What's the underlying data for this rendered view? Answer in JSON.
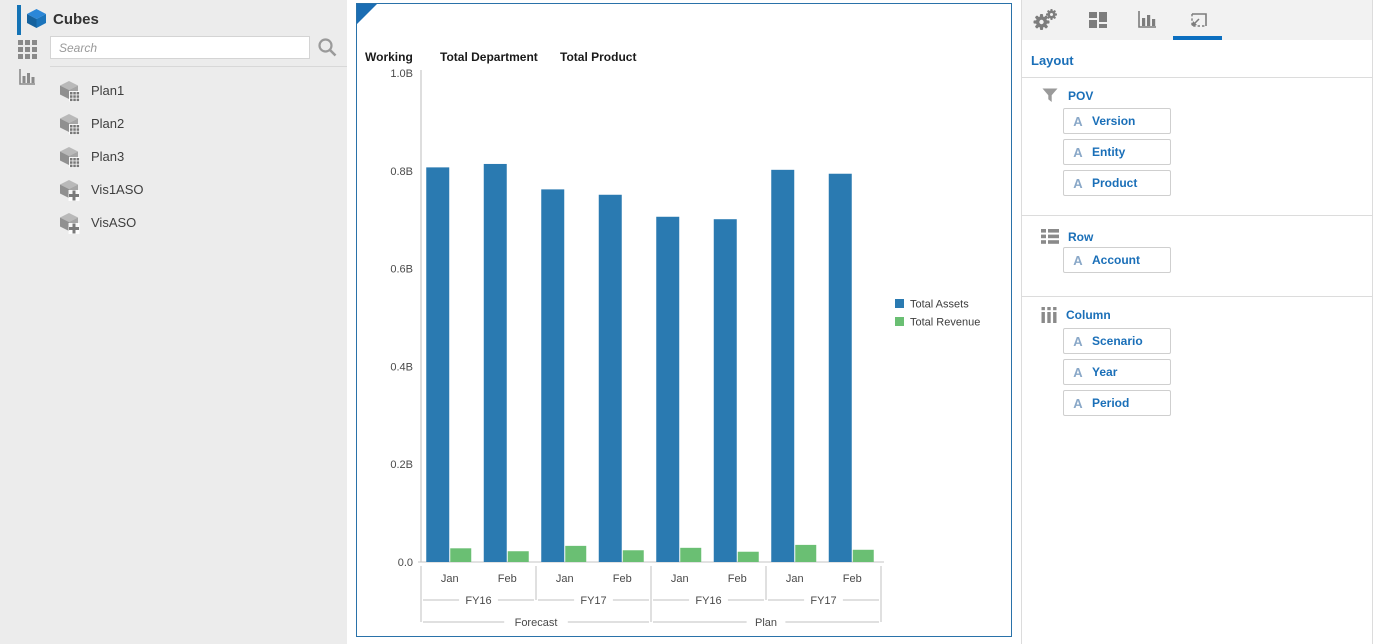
{
  "left_panel": {
    "title": "Cubes",
    "search": {
      "placeholder": "Search"
    },
    "rail_icons": [
      "cubes-icon",
      "grid-icon",
      "visualization-icon"
    ],
    "items": [
      {
        "label": "Plan1",
        "icon": "cube-grid-icon"
      },
      {
        "label": "Plan2",
        "icon": "cube-grid-icon"
      },
      {
        "label": "Plan3",
        "icon": "cube-grid-icon"
      },
      {
        "label": "Vis1ASO",
        "icon": "cube-plus-icon"
      },
      {
        "label": "VisASO",
        "icon": "cube-plus-icon"
      }
    ]
  },
  "chart_panel": {
    "pov_headers": [
      "Working",
      "Total Department",
      "Total Product"
    ]
  },
  "chart_data": {
    "type": "bar",
    "title": "",
    "xlabel": "",
    "ylabel": "",
    "ylim": [
      0,
      1.0
    ],
    "y_tick_labels": [
      "1.0B",
      "0.8B",
      "0.6B",
      "0.4B",
      "0.2B",
      "0.0"
    ],
    "grid": false,
    "legend_position": "right",
    "x_levels": {
      "period": [
        "Jan",
        "Feb",
        "Jan",
        "Feb",
        "Jan",
        "Feb",
        "Jan",
        "Feb"
      ],
      "year": [
        {
          "label": "FY16",
          "span": 2
        },
        {
          "label": "FY17",
          "span": 2
        },
        {
          "label": "FY16",
          "span": 2
        },
        {
          "label": "FY17",
          "span": 2
        }
      ],
      "scenario": [
        {
          "label": "Forecast",
          "span": 4
        },
        {
          "label": "Plan",
          "span": 4
        }
      ]
    },
    "series": [
      {
        "name": "Total Assets",
        "color": "#2a7ab1",
        "values": [
          0.807,
          0.814,
          0.762,
          0.751,
          0.706,
          0.701,
          0.802,
          0.794
        ]
      },
      {
        "name": "Total Revenue",
        "color": "#6abf73",
        "values": [
          0.028,
          0.022,
          0.033,
          0.024,
          0.029,
          0.021,
          0.035,
          0.025
        ]
      }
    ]
  },
  "right_panel": {
    "tabs": [
      {
        "icon": "gears-icon",
        "selected": false
      },
      {
        "icon": "tiles-icon",
        "selected": false
      },
      {
        "icon": "chart-icon",
        "selected": false
      },
      {
        "icon": "layout-resize-icon",
        "selected": true
      }
    ],
    "heading": "Layout",
    "sections": [
      {
        "title": "POV",
        "icon": "filter-icon",
        "items": [
          {
            "label": "Version"
          },
          {
            "label": "Entity"
          },
          {
            "label": "Product"
          }
        ]
      },
      {
        "title": "Row",
        "icon": "rows-icon",
        "items": [
          {
            "label": "Account"
          }
        ]
      },
      {
        "title": "Column",
        "icon": "columns-icon",
        "items": [
          {
            "label": "Scenario"
          },
          {
            "label": "Year"
          },
          {
            "label": "Period"
          }
        ]
      }
    ]
  },
  "colors": {
    "accent_blue": "#1473b5",
    "link_blue": "#1a6fb8",
    "bar_blue": "#2a7ab1",
    "bar_green": "#6abf73",
    "panel_border_blue": "#2a72a9",
    "tab_underline": "#0c6fc0",
    "left_panel_bg": "#ececec"
  }
}
